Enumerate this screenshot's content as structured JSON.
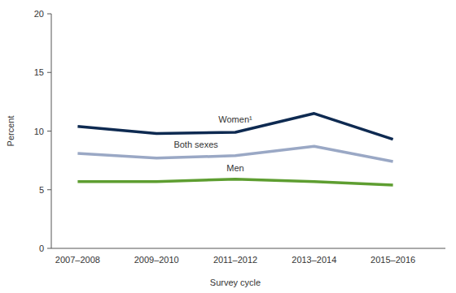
{
  "chart_data": {
    "type": "line",
    "x_label": "Survey cycle",
    "y_label": "Percent",
    "categories": [
      "2007–2008",
      "2009–2010",
      "2011–2012",
      "2013–2014",
      "2015–2016"
    ],
    "series": [
      {
        "name": "Women¹",
        "color": "#0e2a51",
        "values": [
          10.4,
          9.8,
          9.9,
          11.5,
          9.3
        ]
      },
      {
        "name": "Both sexes",
        "color": "#9aa8c5",
        "values": [
          8.1,
          7.7,
          7.9,
          8.7,
          7.4
        ]
      },
      {
        "name": "Men",
        "color": "#5e9e31",
        "values": [
          5.7,
          5.7,
          5.9,
          5.7,
          5.4
        ]
      }
    ],
    "ylim": [
      0,
      20
    ],
    "yticks": [
      0,
      5,
      10,
      15,
      20
    ],
    "grid": false
  }
}
